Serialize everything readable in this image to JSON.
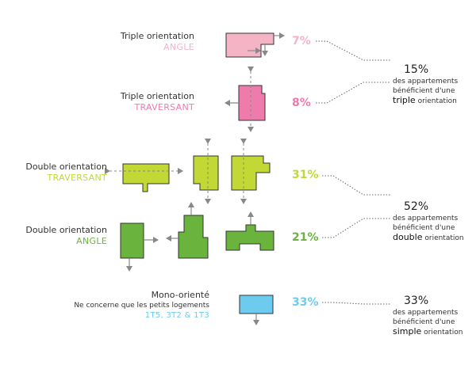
{
  "colors": {
    "triple_angle": "#f5b3c6",
    "triple_traversant": "#ee7bac",
    "double_traversant": "#c2d935",
    "double_angle": "#6ab43e",
    "mono": "#6ccbef",
    "arrow": "#888888",
    "leader": "#666666"
  },
  "rows": [
    {
      "id": "triple-angle",
      "line1": "Triple orientation",
      "line2": "ANGLE",
      "percent": "7%",
      "color": "#f5b3c6"
    },
    {
      "id": "triple-traversant",
      "line1": "Triple orientation",
      "line2": "TRAVERSANT",
      "percent": "8%",
      "color": "#ee7bac"
    },
    {
      "id": "double-traversant",
      "line1": "Double orientation",
      "line2": "TRAVERSANT",
      "percent": "31%",
      "color": "#c2d935"
    },
    {
      "id": "double-angle",
      "line1": "Double orientation",
      "line2": "ANGLE",
      "percent": "21%",
      "color": "#6ab43e"
    },
    {
      "id": "mono",
      "line1": "Mono-orienté",
      "line1b": "Ne concerne que les petits logements",
      "line2": "1T5, 3T2 & 1T3",
      "percent": "33%",
      "color": "#6ccbef"
    }
  ],
  "summaries": [
    {
      "id": "triple",
      "big": "15%",
      "line1": "des appartements",
      "line2": "bénéficient d'une",
      "keyword": "triple",
      "rest": " orientation"
    },
    {
      "id": "double",
      "big": "52%",
      "line1": "des appartements",
      "line2": "bénéficient d'une",
      "keyword": "double",
      "rest": " orientation"
    },
    {
      "id": "simple",
      "big": "33%",
      "line1": "des appartements",
      "line2": "bénéficient d'une",
      "keyword": "simple",
      "rest": " orientation"
    }
  ]
}
